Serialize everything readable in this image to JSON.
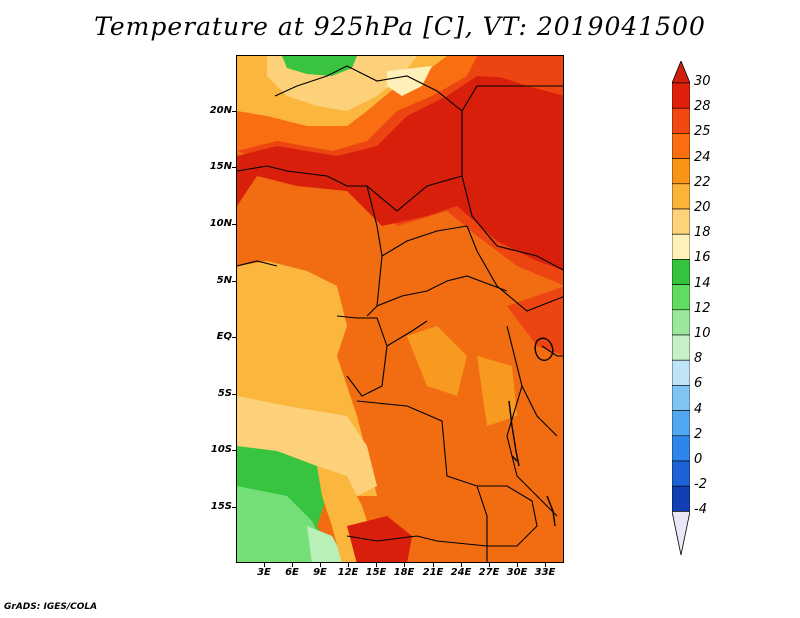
{
  "title": "Temperature at 925hPa [C], VT: 2019041500",
  "credit": "GrADS: IGES/COLA",
  "lat_labels": [
    "20N",
    "15N",
    "10N",
    "5N",
    "EQ",
    "5S",
    "10S",
    "15S"
  ],
  "lon_labels": [
    "3E",
    "6E",
    "9E",
    "12E",
    "15E",
    "18E",
    "21E",
    "24E",
    "27E",
    "30E",
    "33E"
  ],
  "colorbar": {
    "labels": [
      "30",
      "28",
      "25",
      "24",
      "22",
      "20",
      "18",
      "16",
      "14",
      "12",
      "10",
      "8",
      "6",
      "4",
      "2",
      "0",
      "-2",
      "-4"
    ],
    "colors": [
      "#e0200a",
      "#f04810",
      "#f86e10",
      "#fa9418",
      "#fbb43a",
      "#fdd27a",
      "#fef2b8",
      "#33c33d",
      "#60dc60",
      "#9ae89a",
      "#c8f0c8",
      "#bfe4f8",
      "#80c4f4",
      "#52a8f0",
      "#2e86ec",
      "#1e62d8",
      "#1040b4",
      "#0c1f80"
    ],
    "top_arrow_color": "#d01f0a",
    "bottom_arrow_color": "#e8e8f8"
  },
  "palette": {
    "hot": "#d81f0c",
    "warm_red": "#ec4512",
    "orange": "#f26d12",
    "light_orange": "#f89a20",
    "amber": "#fbb63e",
    "pale": "#fdd07a",
    "cream": "#fef0b8",
    "green": "#38c43f",
    "light_green": "#75e07a",
    "pale_green": "#b8f0b8"
  }
}
